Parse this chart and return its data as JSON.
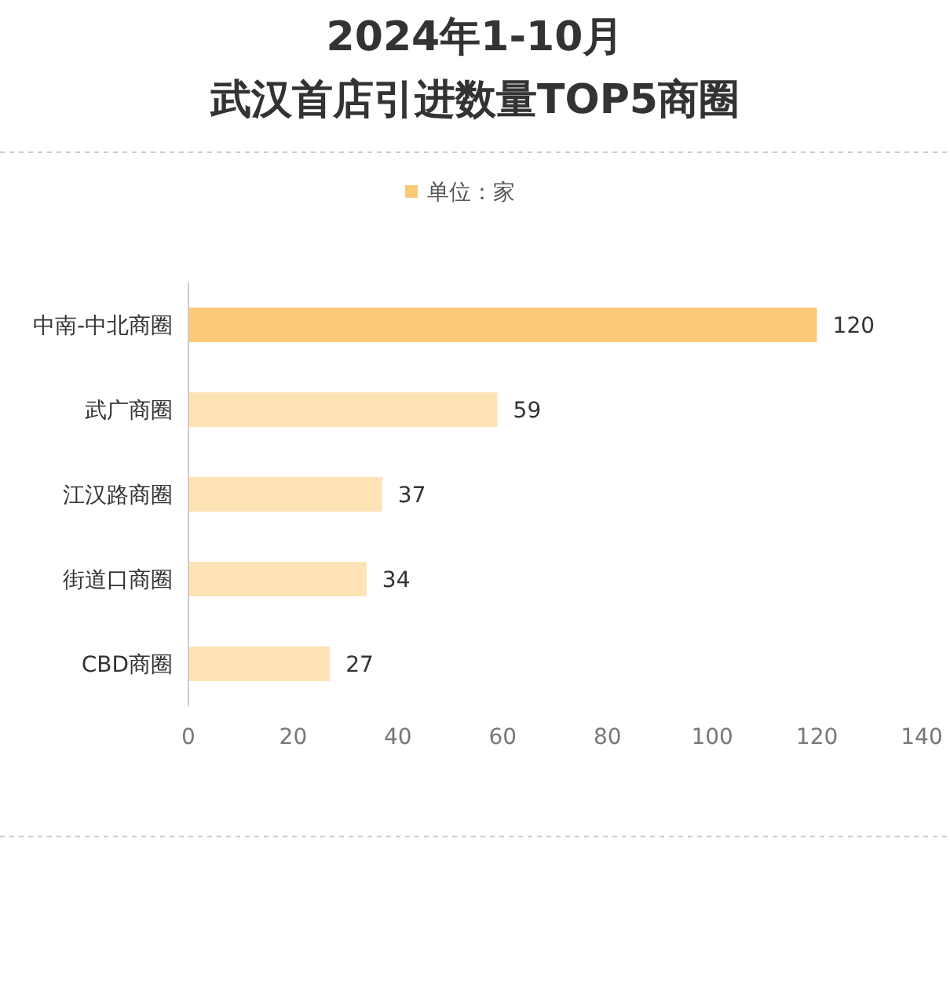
{
  "chart_data": {
    "type": "bar",
    "orientation": "horizontal",
    "title": "2024年1-10月",
    "subtitle": "武汉首店引进数量TOP5商圈",
    "categories": [
      "中南-中北商圈",
      "武广商圈",
      "江汉路商圈",
      "街道口商圈",
      "CBD商圈"
    ],
    "series": [
      {
        "name": "单位：家",
        "color": "#fcc978",
        "colors": [
          "#fcc978",
          "#fee3b6",
          "#fee3b6",
          "#fee3b6",
          "#fee3b6"
        ],
        "values": [
          120,
          59,
          37,
          34,
          27
        ]
      }
    ],
    "xlim": [
      0,
      140
    ],
    "xticks": [
      0,
      20,
      40,
      60,
      80,
      100,
      120,
      140
    ],
    "data_labels": true,
    "legend": "top",
    "grid": false
  }
}
